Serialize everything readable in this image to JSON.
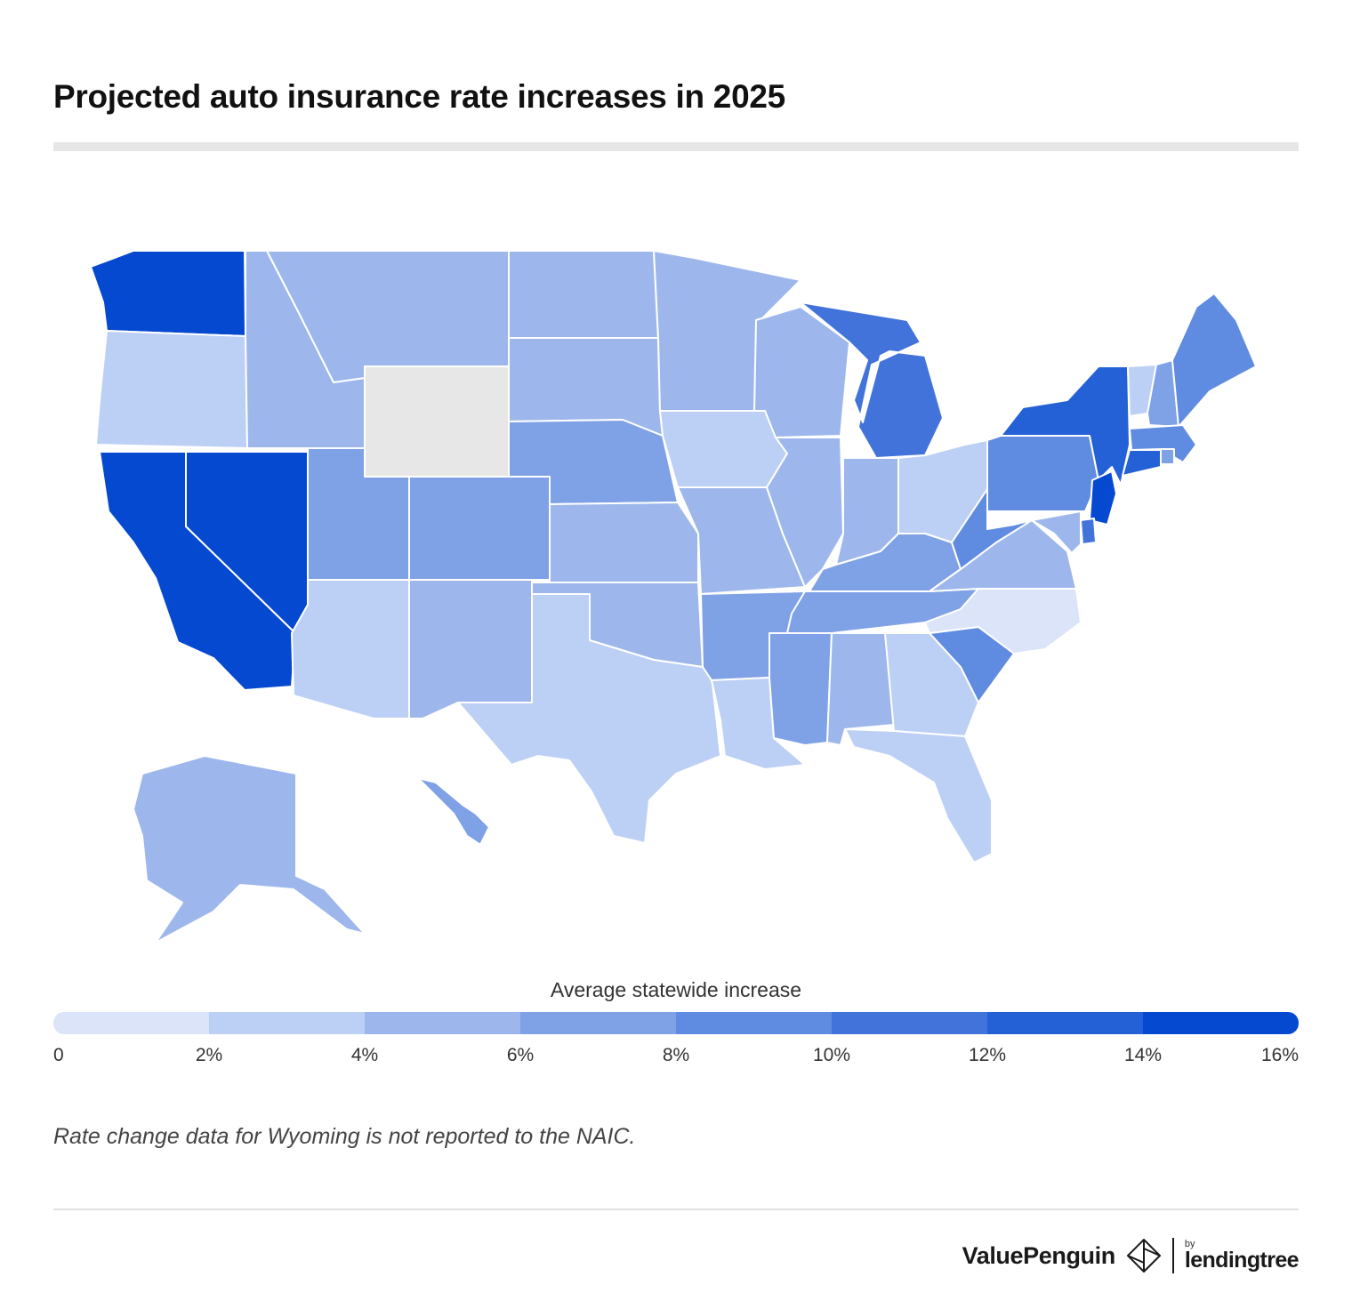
{
  "title": "Projected auto insurance rate increases in 2025",
  "legend": {
    "title": "Average statewide increase",
    "ticks": [
      "0",
      "2%",
      "4%",
      "6%",
      "8%",
      "10%",
      "12%",
      "14%",
      "16%"
    ],
    "colors": [
      "#dbe4f8",
      "#bccff5",
      "#9db7ec",
      "#7fa1e6",
      "#5f8be0",
      "#4273db",
      "#2460d6",
      "#0649d1"
    ]
  },
  "no_data_color": "#e7e7e7",
  "note": "Rate change data for Wyoming is not reported to the NAIC.",
  "brand": {
    "name": "ValuePenguin",
    "by": "by",
    "partner": "lendingtree"
  },
  "chart_data": {
    "type": "choropleth",
    "title": "Projected auto insurance rate increases in 2025",
    "legend_title": "Average statewide increase",
    "scale_range": [
      0,
      16
    ],
    "units": "%",
    "bins": [
      "0-2",
      "2-4",
      "4-6",
      "6-8",
      "8-10",
      "10-12",
      "12-14",
      "14-16"
    ],
    "states": [
      {
        "state": "WA",
        "bin": 7
      },
      {
        "state": "OR",
        "bin": 1
      },
      {
        "state": "CA",
        "bin": 7
      },
      {
        "state": "NV",
        "bin": 7
      },
      {
        "state": "ID",
        "bin": 2
      },
      {
        "state": "MT",
        "bin": 2
      },
      {
        "state": "WY",
        "bin": null
      },
      {
        "state": "UT",
        "bin": 3
      },
      {
        "state": "CO",
        "bin": 3
      },
      {
        "state": "AZ",
        "bin": 1
      },
      {
        "state": "NM",
        "bin": 2
      },
      {
        "state": "ND",
        "bin": 2
      },
      {
        "state": "SD",
        "bin": 2
      },
      {
        "state": "NE",
        "bin": 3
      },
      {
        "state": "KS",
        "bin": 2
      },
      {
        "state": "OK",
        "bin": 2
      },
      {
        "state": "TX",
        "bin": 1
      },
      {
        "state": "MN",
        "bin": 2
      },
      {
        "state": "IA",
        "bin": 1
      },
      {
        "state": "MO",
        "bin": 2
      },
      {
        "state": "AR",
        "bin": 3
      },
      {
        "state": "LA",
        "bin": 1
      },
      {
        "state": "WI",
        "bin": 2
      },
      {
        "state": "IL",
        "bin": 2
      },
      {
        "state": "MI",
        "bin": 5
      },
      {
        "state": "IN",
        "bin": 2
      },
      {
        "state": "OH",
        "bin": 1
      },
      {
        "state": "KY",
        "bin": 3
      },
      {
        "state": "TN",
        "bin": 3
      },
      {
        "state": "MS",
        "bin": 3
      },
      {
        "state": "AL",
        "bin": 2
      },
      {
        "state": "GA",
        "bin": 1
      },
      {
        "state": "FL",
        "bin": 1
      },
      {
        "state": "SC",
        "bin": 4
      },
      {
        "state": "NC",
        "bin": 0
      },
      {
        "state": "VA",
        "bin": 2
      },
      {
        "state": "WV",
        "bin": 4
      },
      {
        "state": "PA",
        "bin": 4
      },
      {
        "state": "NY",
        "bin": 6
      },
      {
        "state": "VT",
        "bin": 1
      },
      {
        "state": "NH",
        "bin": 3
      },
      {
        "state": "ME",
        "bin": 4
      },
      {
        "state": "MA",
        "bin": 4
      },
      {
        "state": "RI",
        "bin": 3
      },
      {
        "state": "CT",
        "bin": 6
      },
      {
        "state": "NJ",
        "bin": 7
      },
      {
        "state": "DE",
        "bin": 5
      },
      {
        "state": "MD",
        "bin": 2
      },
      {
        "state": "AK",
        "bin": 2
      },
      {
        "state": "HI",
        "bin": 3
      }
    ]
  }
}
